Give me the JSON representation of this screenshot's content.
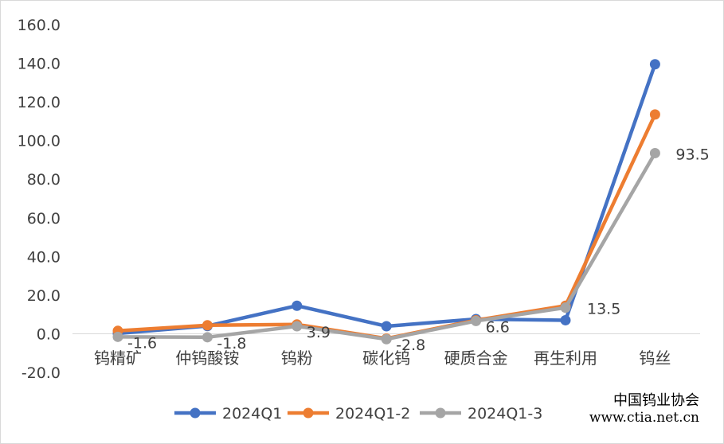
{
  "chart_data": {
    "type": "line",
    "categories": [
      "钨精矿",
      "仲钨酸铵",
      "钨粉",
      "碳化钨",
      "硬质合金",
      "再生利用",
      "钨丝"
    ],
    "ylim": [
      -20.0,
      160.0
    ],
    "yticks": [
      "160.0",
      "140.0",
      "120.0",
      "100.0",
      "80.0",
      "60.0",
      "40.0",
      "20.0",
      "0.0",
      "-20.0"
    ],
    "ytick_values": [
      160,
      140,
      120,
      100,
      80,
      60,
      40,
      20,
      0,
      -20
    ],
    "series": [
      {
        "name": "2024Q1",
        "color": "#4472C4",
        "values": [
          0.2,
          4.0,
          14.5,
          3.9,
          7.6,
          7.0,
          139.5
        ]
      },
      {
        "name": "2024Q1-2",
        "color": "#ED7D31",
        "values": [
          1.5,
          4.4,
          4.8,
          -2.5,
          7.0,
          14.5,
          113.5
        ]
      },
      {
        "name": "2024Q1-3",
        "color": "#A5A5A5",
        "values": [
          -1.6,
          -1.8,
          3.9,
          -2.8,
          6.6,
          13.5,
          93.5
        ]
      }
    ],
    "data_labels": {
      "series": "2024Q1-3",
      "texts": [
        "-1.6",
        "-1.8",
        "3.9",
        "-2.8",
        "6.6",
        "13.5",
        "93.5"
      ]
    },
    "legend_position": "bottom",
    "grid": false
  },
  "watermark": {
    "name": "中国钨业协会",
    "url": "www.ctia.net.cn"
  }
}
